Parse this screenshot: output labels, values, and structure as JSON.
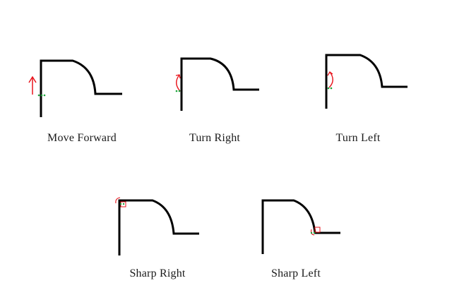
{
  "panels": [
    {
      "id": "move-forward",
      "caption": "Move Forward",
      "marker": "up-arrow",
      "marker_color": "#e8141c",
      "point_color": "#1aa33a"
    },
    {
      "id": "turn-right",
      "caption": "Turn Right",
      "marker": "curved-arrow-right",
      "marker_color": "#e8141c",
      "point_color": "#1aa33a"
    },
    {
      "id": "turn-left",
      "caption": "Turn Left",
      "marker": "curved-arrow-left",
      "marker_color": "#e8141c",
      "point_color": "#1aa33a"
    },
    {
      "id": "sharp-right",
      "caption": "Sharp Right",
      "marker": "corner-turn-right",
      "marker_color": "#e8141c",
      "point_color": "#1aa33a"
    },
    {
      "id": "sharp-left",
      "caption": "Sharp Left",
      "marker": "corner-turn-left",
      "marker_color": "#e8141c",
      "point_color": "#1aa33a"
    }
  ],
  "path_color": "#000000"
}
